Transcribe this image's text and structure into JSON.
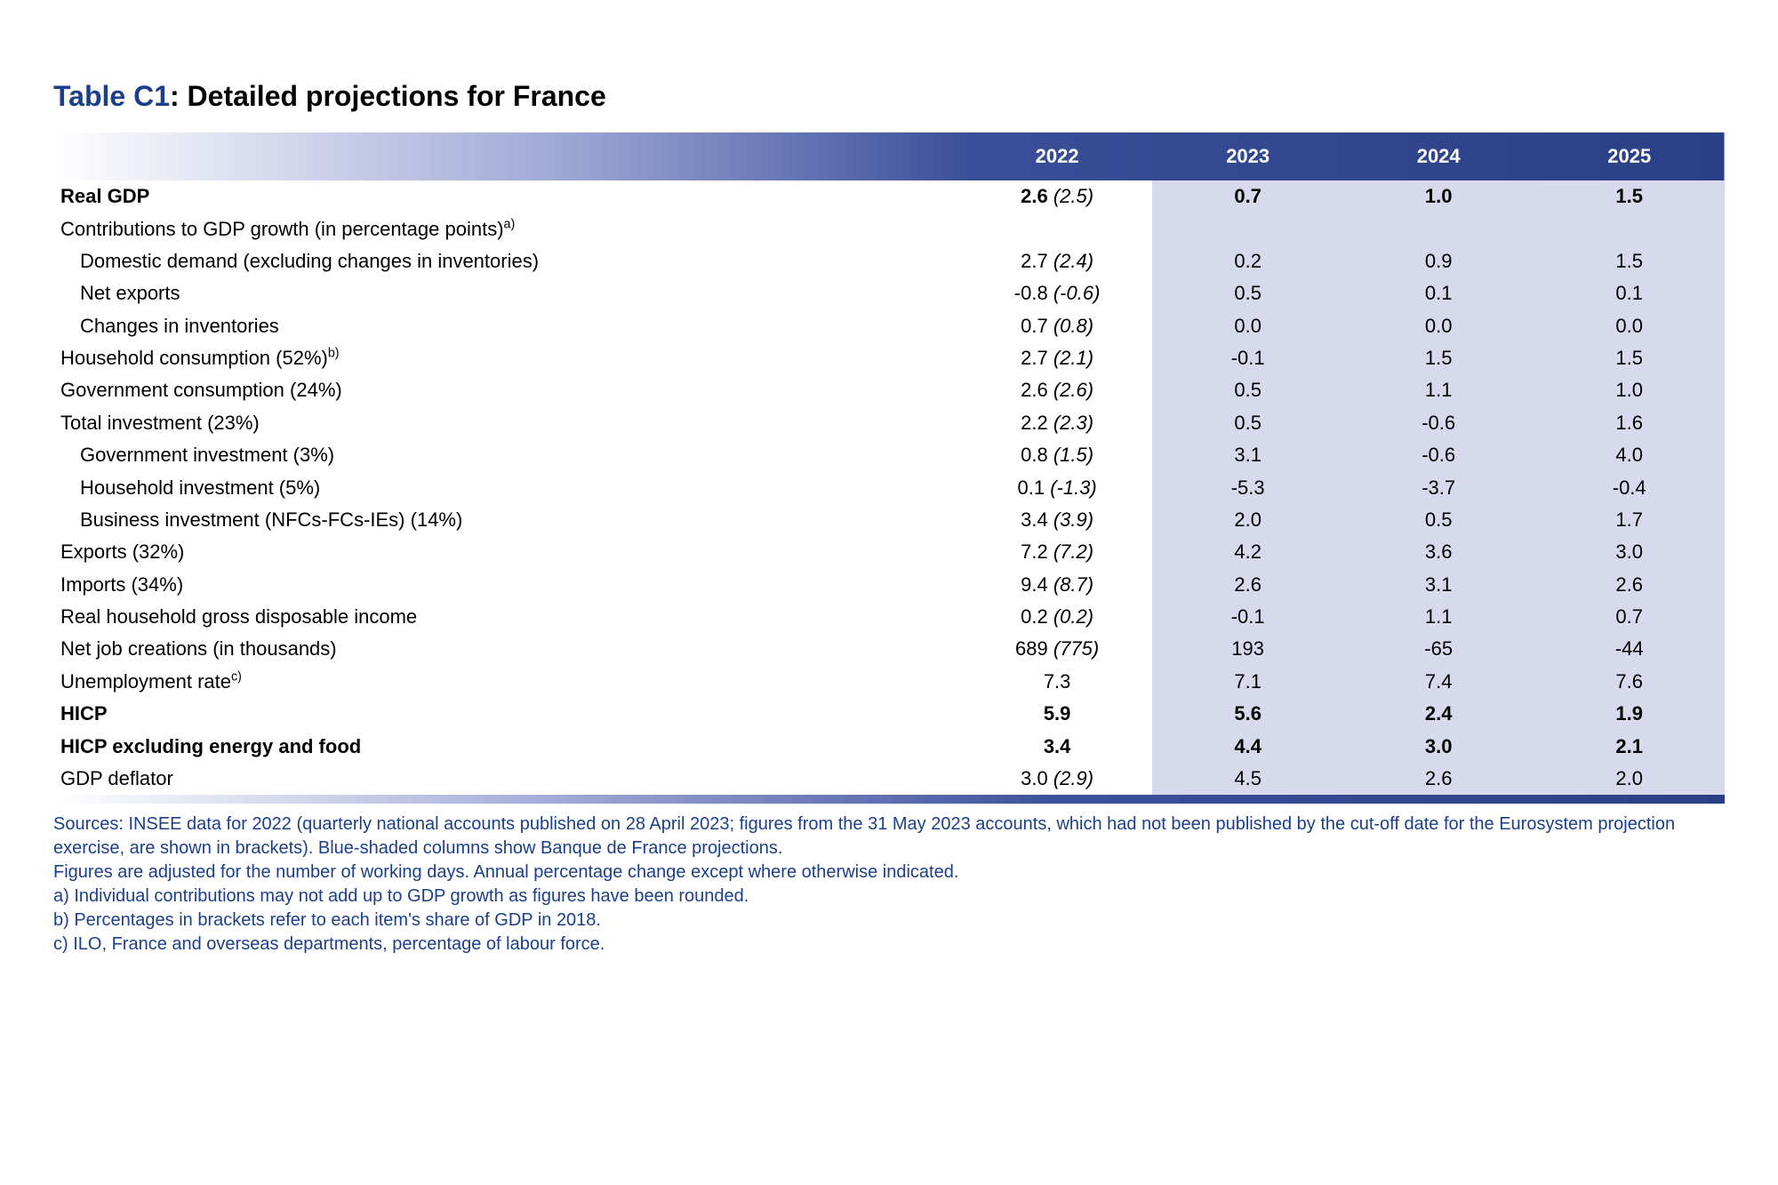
{
  "title": {
    "id": "Table C1",
    "separator": ": ",
    "text": "Detailed projections for France"
  },
  "colors": {
    "title_id_color": "#1b3f8b",
    "title_text_color": "#000000",
    "header_gradient_start": "#ffffff",
    "header_gradient_end": "#2b3f87",
    "header_text_color": "#ffffff",
    "shade_bg": "#d7daec",
    "notes_color": "#1b3f8b",
    "body_text": "#000000"
  },
  "table": {
    "years": [
      "2022",
      "2023",
      "2024",
      "2025"
    ],
    "shaded_columns": [
      1,
      2,
      3
    ],
    "rows": [
      {
        "label": "Real GDP",
        "bold": true,
        "indent": 0,
        "sup": "",
        "v": [
          {
            "main": "2.6",
            "paren": "(2.5)"
          },
          {
            "main": "0.7"
          },
          {
            "main": "1.0"
          },
          {
            "main": "1.5"
          }
        ]
      },
      {
        "label": "Contributions to GDP growth (in percentage points)",
        "bold": false,
        "indent": 0,
        "sup": "a)",
        "v": [
          {
            "main": ""
          },
          {
            "main": ""
          },
          {
            "main": ""
          },
          {
            "main": ""
          }
        ]
      },
      {
        "label": "Domestic demand (excluding changes in inventories)",
        "bold": false,
        "indent": 1,
        "sup": "",
        "v": [
          {
            "main": "2.7",
            "paren": "(2.4)"
          },
          {
            "main": "0.2"
          },
          {
            "main": "0.9"
          },
          {
            "main": "1.5"
          }
        ]
      },
      {
        "label": "Net exports",
        "bold": false,
        "indent": 1,
        "sup": "",
        "v": [
          {
            "main": "-0.8",
            "paren": "(-0.6)"
          },
          {
            "main": "0.5"
          },
          {
            "main": "0.1"
          },
          {
            "main": "0.1"
          }
        ]
      },
      {
        "label": "Changes in inventories",
        "bold": false,
        "indent": 1,
        "sup": "",
        "v": [
          {
            "main": "0.7",
            "paren": "(0.8)"
          },
          {
            "main": "0.0"
          },
          {
            "main": "0.0"
          },
          {
            "main": "0.0"
          }
        ]
      },
      {
        "label": "Household consumption (52%)",
        "bold": false,
        "indent": 0,
        "sup": "b)",
        "v": [
          {
            "main": "2.7",
            "paren": "(2.1)"
          },
          {
            "main": "-0.1"
          },
          {
            "main": "1.5"
          },
          {
            "main": "1.5"
          }
        ]
      },
      {
        "label": "Government consumption (24%)",
        "bold": false,
        "indent": 0,
        "sup": "",
        "v": [
          {
            "main": "2.6",
            "paren": "(2.6)"
          },
          {
            "main": "0.5"
          },
          {
            "main": "1.1"
          },
          {
            "main": "1.0"
          }
        ]
      },
      {
        "label": "Total investment (23%)",
        "bold": false,
        "indent": 0,
        "sup": "",
        "v": [
          {
            "main": "2.2",
            "paren": "(2.3)"
          },
          {
            "main": "0.5"
          },
          {
            "main": "-0.6"
          },
          {
            "main": "1.6"
          }
        ]
      },
      {
        "label": "Government investment (3%)",
        "bold": false,
        "indent": 1,
        "sup": "",
        "v": [
          {
            "main": "0.8",
            "paren": "(1.5)"
          },
          {
            "main": "3.1"
          },
          {
            "main": "-0.6"
          },
          {
            "main": "4.0"
          }
        ]
      },
      {
        "label": "Household investment (5%)",
        "bold": false,
        "indent": 1,
        "sup": "",
        "v": [
          {
            "main": "0.1",
            "paren": "(-1.3)"
          },
          {
            "main": "-5.3"
          },
          {
            "main": "-3.7"
          },
          {
            "main": "-0.4"
          }
        ]
      },
      {
        "label": "Business investment (NFCs-FCs-IEs) (14%)",
        "bold": false,
        "indent": 1,
        "sup": "",
        "v": [
          {
            "main": "3.4",
            "paren": "(3.9)"
          },
          {
            "main": "2.0"
          },
          {
            "main": "0.5"
          },
          {
            "main": "1.7"
          }
        ]
      },
      {
        "label": "Exports (32%)",
        "bold": false,
        "indent": 0,
        "sup": "",
        "v": [
          {
            "main": "7.2",
            "paren": "(7.2)"
          },
          {
            "main": "4.2"
          },
          {
            "main": "3.6"
          },
          {
            "main": "3.0"
          }
        ]
      },
      {
        "label": "Imports (34%)",
        "bold": false,
        "indent": 0,
        "sup": "",
        "v": [
          {
            "main": "9.4",
            "paren": "(8.7)"
          },
          {
            "main": "2.6"
          },
          {
            "main": "3.1"
          },
          {
            "main": "2.6"
          }
        ]
      },
      {
        "label": "Real household gross disposable income",
        "bold": false,
        "indent": 0,
        "sup": "",
        "v": [
          {
            "main": "0.2",
            "paren": "(0.2)"
          },
          {
            "main": "-0.1"
          },
          {
            "main": "1.1"
          },
          {
            "main": "0.7"
          }
        ]
      },
      {
        "label": "Net job creations (in thousands)",
        "bold": false,
        "indent": 0,
        "sup": "",
        "v": [
          {
            "main": "689",
            "paren": "(775)"
          },
          {
            "main": "193"
          },
          {
            "main": "-65"
          },
          {
            "main": "-44"
          }
        ]
      },
      {
        "label": "Unemployment rate",
        "bold": false,
        "indent": 0,
        "sup": "c)",
        "v": [
          {
            "main": "7.3"
          },
          {
            "main": "7.1"
          },
          {
            "main": "7.4"
          },
          {
            "main": "7.6"
          }
        ]
      },
      {
        "label": "HICP",
        "bold": true,
        "indent": 0,
        "sup": "",
        "v": [
          {
            "main": "5.9"
          },
          {
            "main": "5.6"
          },
          {
            "main": "2.4"
          },
          {
            "main": "1.9"
          }
        ]
      },
      {
        "label": "HICP excluding energy and food",
        "bold": true,
        "indent": 0,
        "sup": "",
        "v": [
          {
            "main": "3.4"
          },
          {
            "main": "4.4"
          },
          {
            "main": "3.0"
          },
          {
            "main": "2.1"
          }
        ]
      },
      {
        "label": "GDP deflator",
        "bold": false,
        "indent": 0,
        "sup": "",
        "v": [
          {
            "main": "3.0",
            "paren": "(2.9)"
          },
          {
            "main": "4.5"
          },
          {
            "main": "2.6"
          },
          {
            "main": "2.0"
          }
        ]
      }
    ]
  },
  "notes": [
    "Sources: INSEE data for 2022 (quarterly national accounts published on 28 April 2023; figures from the 31 May 2023 accounts, which had not been published by the cut-off date for the Eurosystem projection exercise, are shown in brackets). Blue-shaded columns show Banque de France projections.",
    "Figures are adjusted for the number of working days. Annual percentage change except where otherwise indicated.",
    "a)  Individual contributions may not add up to GDP growth as figures have been rounded.",
    "b)  Percentages in brackets refer to each item's share of GDP in 2018.",
    "c)  ILO, France and overseas departments, percentage of labour force."
  ]
}
